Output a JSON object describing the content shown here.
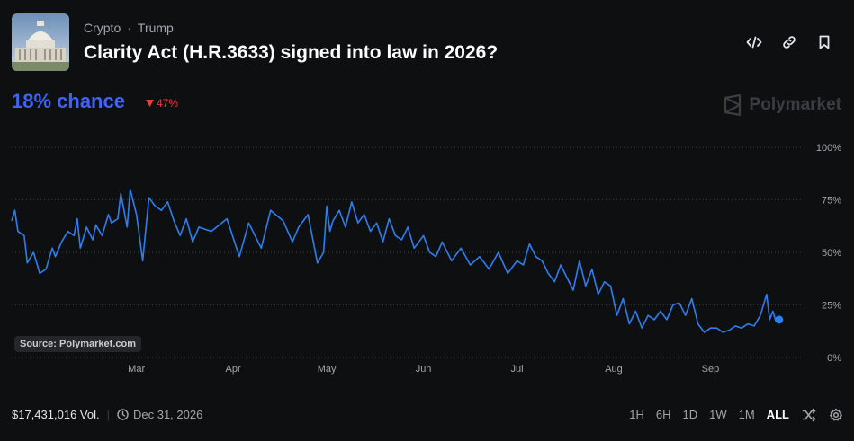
{
  "header": {
    "breadcrumb": [
      "Crypto",
      "Trump"
    ],
    "title": "Clarity Act (H.R.3633) signed into law in 2026?",
    "actions": [
      "embed-code-icon",
      "link-icon",
      "bookmark-icon"
    ]
  },
  "market": {
    "chance_label": "18% chance",
    "change_label": "47%",
    "change_direction": "down",
    "brand": "Polymarket",
    "source_label": "Source: Polymarket.com"
  },
  "footer": {
    "volume_label": "$17,431,016 Vol.",
    "end_date": "Dec 31, 2026",
    "ranges": [
      "1H",
      "6H",
      "1D",
      "1W",
      "1M",
      "ALL"
    ],
    "active_range": "ALL"
  },
  "colors": {
    "line": "#2d7ff0",
    "accent": "#3e63f5",
    "negative": "#e0403e",
    "background": "#0e0f11"
  },
  "chart_data": {
    "type": "line",
    "title": "",
    "xlabel": "",
    "ylabel": "",
    "ylim": [
      0,
      100
    ],
    "y_ticks": [
      0,
      25,
      50,
      75,
      100
    ],
    "y_tick_labels": [
      "0%",
      "25%",
      "50%",
      "75%",
      "100%"
    ],
    "x_ticks": [
      "2025-03-01",
      "2025-04-01",
      "2025-05-01",
      "2025-06-01",
      "2025-07-01",
      "2025-08-01",
      "2025-09-01"
    ],
    "x_tick_labels": [
      "Mar",
      "Apr",
      "May",
      "Jun",
      "Jul",
      "Aug",
      "Sep"
    ],
    "xlim": [
      "2025-01-20",
      "2025-09-30"
    ],
    "grid": true,
    "series": [
      {
        "x": [
          "2025-01-20",
          "2025-01-21",
          "2025-01-22",
          "2025-01-24",
          "2025-01-25",
          "2025-01-27",
          "2025-01-29",
          "2025-01-31",
          "2025-02-02",
          "2025-02-03",
          "2025-02-05",
          "2025-02-07",
          "2025-02-09",
          "2025-02-10",
          "2025-02-11",
          "2025-02-13",
          "2025-02-15",
          "2025-02-16",
          "2025-02-18",
          "2025-02-20",
          "2025-02-21",
          "2025-02-23",
          "2025-02-24",
          "2025-02-26",
          "2025-02-27",
          "2025-03-01",
          "2025-03-03",
          "2025-03-05",
          "2025-03-07",
          "2025-03-09",
          "2025-03-11",
          "2025-03-13",
          "2025-03-15",
          "2025-03-17",
          "2025-03-19",
          "2025-03-21",
          "2025-03-25",
          "2025-03-30",
          "2025-04-03",
          "2025-04-06",
          "2025-04-10",
          "2025-04-13",
          "2025-04-17",
          "2025-04-20",
          "2025-04-22",
          "2025-04-25",
          "2025-04-28",
          "2025-04-30",
          "2025-05-01",
          "2025-05-02",
          "2025-05-03",
          "2025-05-05",
          "2025-05-07",
          "2025-05-09",
          "2025-05-11",
          "2025-05-13",
          "2025-05-15",
          "2025-05-17",
          "2025-05-19",
          "2025-05-21",
          "2025-05-23",
          "2025-05-25",
          "2025-05-27",
          "2025-05-29",
          "2025-06-01",
          "2025-06-03",
          "2025-06-05",
          "2025-06-07",
          "2025-06-10",
          "2025-06-13",
          "2025-06-16",
          "2025-06-19",
          "2025-06-22",
          "2025-06-25",
          "2025-06-28",
          "2025-07-01",
          "2025-07-03",
          "2025-07-05",
          "2025-07-07",
          "2025-07-09",
          "2025-07-11",
          "2025-07-13",
          "2025-07-15",
          "2025-07-17",
          "2025-07-19",
          "2025-07-21",
          "2025-07-23",
          "2025-07-25",
          "2025-07-27",
          "2025-07-29",
          "2025-07-31",
          "2025-08-02",
          "2025-08-04",
          "2025-08-06",
          "2025-08-08",
          "2025-08-10",
          "2025-08-12",
          "2025-08-14",
          "2025-08-16",
          "2025-08-18",
          "2025-08-20",
          "2025-08-22",
          "2025-08-24",
          "2025-08-26",
          "2025-08-28",
          "2025-08-30",
          "2025-09-01",
          "2025-09-03",
          "2025-09-05",
          "2025-09-07",
          "2025-09-09",
          "2025-09-11",
          "2025-09-13",
          "2025-09-15",
          "2025-09-17",
          "2025-09-19",
          "2025-09-20",
          "2025-09-21",
          "2025-09-22",
          "2025-09-23"
        ],
        "values": [
          65,
          70,
          60,
          58,
          45,
          50,
          40,
          42,
          52,
          48,
          55,
          60,
          58,
          66,
          52,
          62,
          56,
          63,
          58,
          68,
          64,
          66,
          78,
          62,
          80,
          68,
          46,
          76,
          72,
          70,
          74,
          65,
          58,
          66,
          55,
          62,
          60,
          66,
          48,
          64,
          52,
          70,
          65,
          55,
          62,
          68,
          45,
          50,
          72,
          60,
          65,
          70,
          62,
          74,
          64,
          68,
          60,
          64,
          55,
          66,
          58,
          56,
          62,
          52,
          58,
          50,
          48,
          55,
          46,
          52,
          44,
          48,
          42,
          50,
          40,
          46,
          44,
          54,
          48,
          46,
          40,
          36,
          44,
          38,
          32,
          46,
          34,
          42,
          30,
          36,
          34,
          20,
          28,
          16,
          22,
          14,
          20,
          18,
          22,
          18,
          25,
          26,
          20,
          28,
          16,
          12,
          14,
          14,
          12,
          13,
          15,
          14,
          16,
          15,
          20,
          30,
          18,
          22,
          17,
          18
        ]
      }
    ]
  }
}
